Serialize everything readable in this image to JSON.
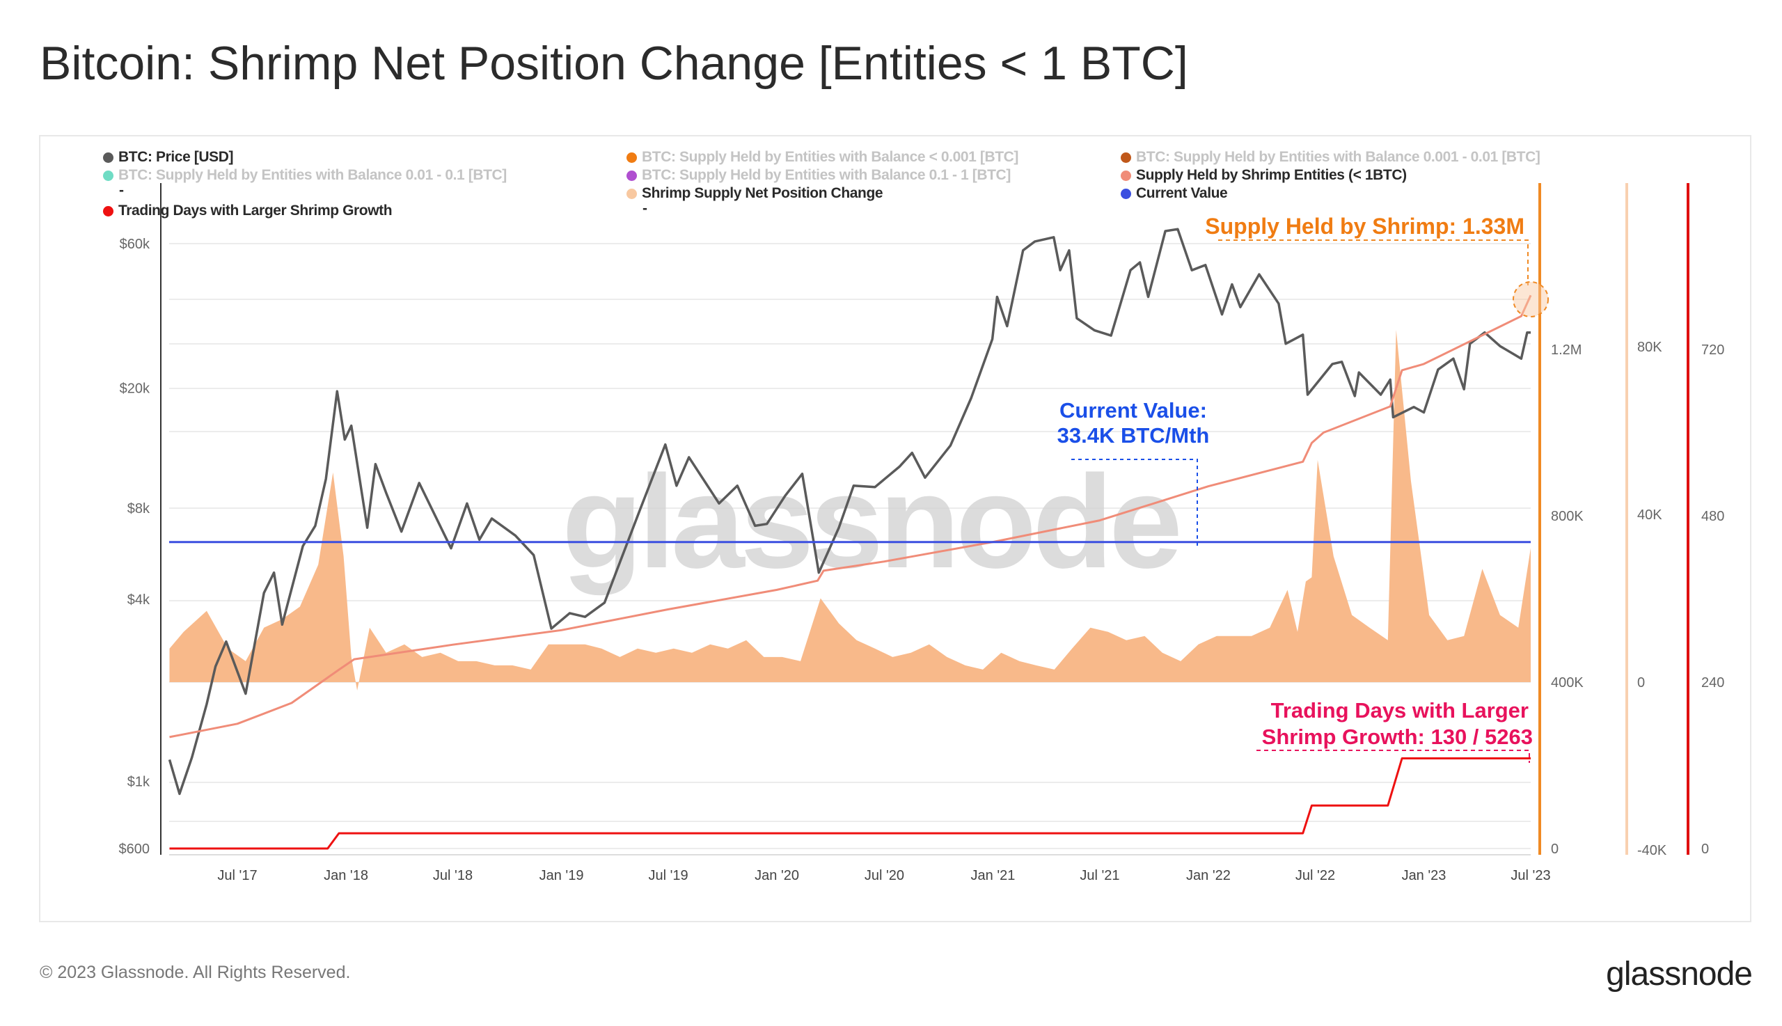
{
  "title": "Bitcoin: Shrimp Net Position Change [Entities < 1 BTC]",
  "legend": [
    {
      "label": "BTC: Price [USD]",
      "color": "#5a5a5a",
      "active": true
    },
    {
      "label": "BTC: Supply Held by Entities with Balance < 0.001 [BTC]",
      "color": "#f07c12",
      "active": false
    },
    {
      "label": "BTC: Supply Held by Entities with Balance 0.001 - 0.01 [BTC]",
      "color": "#c0581a",
      "active": false
    },
    {
      "label": "BTC: Supply Held by Entities with Balance 0.01 - 0.1 [BTC]",
      "color": "#6fdcc4",
      "active": false
    },
    {
      "label": "BTC: Supply Held by Entities with Balance 0.1 - 1 [BTC]",
      "color": "#b04fd0",
      "active": false
    },
    {
      "label": "Supply Held by Shrimp Entities (< 1BTC)",
      "color": "#f08c78",
      "active": true
    },
    {
      "label": "Shrimp Supply Net Position Change",
      "color": "#f8c8a0",
      "active": true
    },
    {
      "label": "Current Value",
      "color": "#3b4fe0",
      "active": true
    },
    {
      "label": "Trading Days with Larger Shrimp Growth",
      "color": "#ee1111",
      "active": true
    }
  ],
  "legend_dash": "-",
  "annotations": {
    "supply": "Supply Held by Shrimp: 1.33M",
    "current_1": "Current Value:",
    "current_2": "33.4K BTC/Mth",
    "days_1": "Trading Days with Larger",
    "days_2": "Shrimp Growth: 130 / 5263"
  },
  "watermark": "glassnode",
  "footer": {
    "copyright": "© 2023 Glassnode. All Rights Reserved.",
    "logo": "glassnode"
  },
  "chart_data": {
    "type": "line",
    "title": "Bitcoin: Shrimp Net Position Change [Entities < 1 BTC]",
    "x_ticks": [
      "Jul '17",
      "Jan '18",
      "Jul '18",
      "Jan '19",
      "Jul '19",
      "Jan '20",
      "Jul '20",
      "Jan '21",
      "Jul '21",
      "Jan '22",
      "Jul '22",
      "Jan '23",
      "Jul '23"
    ],
    "x_tick_dates": [
      "2017-07-01",
      "2018-01-01",
      "2018-07-01",
      "2019-01-01",
      "2019-07-01",
      "2020-01-01",
      "2020-07-01",
      "2021-01-01",
      "2021-07-01",
      "2022-01-01",
      "2022-07-01",
      "2023-01-01",
      "2023-07-01"
    ],
    "axes": {
      "price": {
        "scale": "log",
        "ticks": [
          "$600",
          "$1k",
          "$4k",
          "$8k",
          "$20k",
          "$60k"
        ],
        "tick_values": [
          600,
          1000,
          4000,
          8000,
          20000,
          60000
        ],
        "side": "left"
      },
      "supply": {
        "ticks": [
          "0",
          "400K",
          "800K",
          "1.2M"
        ],
        "tick_values": [
          0,
          400000,
          800000,
          1200000
        ],
        "side": "right",
        "color": "#f08a24"
      },
      "net_position": {
        "ticks": [
          "-40K",
          "0",
          "40K",
          "80K"
        ],
        "tick_values": [
          -40000,
          0,
          40000,
          80000
        ],
        "side": "right",
        "color": "#f8d0b0"
      },
      "trading_days": {
        "ticks": [
          "0",
          "240",
          "480",
          "720"
        ],
        "tick_values": [
          0,
          240,
          480,
          720
        ],
        "side": "right",
        "color": "#e01010"
      }
    },
    "grid": true,
    "legend_position": "top",
    "series": [
      {
        "name": "BTC: Price [USD]",
        "axis": "price",
        "type": "line",
        "color": "#5a5a5a",
        "points": [
          [
            "2017-03-08",
            1180
          ],
          [
            "2017-03-25",
            910
          ],
          [
            "2017-04-15",
            1200
          ],
          [
            "2017-05-10",
            1800
          ],
          [
            "2017-05-25",
            2400
          ],
          [
            "2017-06-12",
            2900
          ],
          [
            "2017-07-15",
            1950
          ],
          [
            "2017-08-15",
            4200
          ],
          [
            "2017-09-01",
            4900
          ],
          [
            "2017-09-15",
            3300
          ],
          [
            "2017-10-20",
            6000
          ],
          [
            "2017-11-10",
            7000
          ],
          [
            "2017-11-28",
            10000
          ],
          [
            "2017-12-17",
            19500
          ],
          [
            "2017-12-30",
            13500
          ],
          [
            "2018-01-10",
            15000
          ],
          [
            "2018-02-06",
            6900
          ],
          [
            "2018-02-20",
            11200
          ],
          [
            "2018-03-10",
            9000
          ],
          [
            "2018-04-05",
            6700
          ],
          [
            "2018-05-05",
            9700
          ],
          [
            "2018-06-28",
            5900
          ],
          [
            "2018-07-25",
            8300
          ],
          [
            "2018-08-15",
            6300
          ],
          [
            "2018-09-05",
            7400
          ],
          [
            "2018-10-15",
            6500
          ],
          [
            "2018-11-15",
            5600
          ],
          [
            "2018-12-15",
            3200
          ],
          [
            "2019-01-15",
            3600
          ],
          [
            "2019-02-10",
            3500
          ],
          [
            "2019-03-15",
            3900
          ],
          [
            "2019-04-05",
            5000
          ],
          [
            "2019-05-15",
            8000
          ],
          [
            "2019-06-26",
            13000
          ],
          [
            "2019-07-15",
            9500
          ],
          [
            "2019-08-05",
            11800
          ],
          [
            "2019-09-25",
            8300
          ],
          [
            "2019-10-26",
            9500
          ],
          [
            "2019-11-25",
            7000
          ],
          [
            "2019-12-15",
            7100
          ],
          [
            "2020-01-15",
            8800
          ],
          [
            "2020-02-13",
            10400
          ],
          [
            "2020-03-12",
            4900
          ],
          [
            "2020-04-15",
            6900
          ],
          [
            "2020-05-10",
            9500
          ],
          [
            "2020-06-15",
            9400
          ],
          [
            "2020-07-27",
            11000
          ],
          [
            "2020-08-17",
            12200
          ],
          [
            "2020-09-08",
            10100
          ],
          [
            "2020-10-21",
            12900
          ],
          [
            "2020-11-25",
            18500
          ],
          [
            "2020-12-31",
            29000
          ],
          [
            "2021-01-08",
            40000
          ],
          [
            "2021-01-25",
            32000
          ],
          [
            "2021-02-21",
            57000
          ],
          [
            "2021-03-13",
            61000
          ],
          [
            "2021-04-14",
            63000
          ],
          [
            "2021-04-25",
            49000
          ],
          [
            "2021-05-10",
            57000
          ],
          [
            "2021-05-23",
            34000
          ],
          [
            "2021-06-22",
            31000
          ],
          [
            "2021-07-20",
            29800
          ],
          [
            "2021-08-22",
            49000
          ],
          [
            "2021-09-07",
            52000
          ],
          [
            "2021-09-21",
            40000
          ],
          [
            "2021-10-20",
            66000
          ],
          [
            "2021-11-10",
            67000
          ],
          [
            "2021-12-04",
            49000
          ],
          [
            "2021-12-27",
            51000
          ],
          [
            "2022-01-24",
            35000
          ],
          [
            "2022-02-10",
            44000
          ],
          [
            "2022-02-24",
            37000
          ],
          [
            "2022-03-28",
            47500
          ],
          [
            "2022-04-30",
            38000
          ],
          [
            "2022-05-12",
            28000
          ],
          [
            "2022-06-10",
            30000
          ],
          [
            "2022-06-18",
            19000
          ],
          [
            "2022-07-30",
            24000
          ],
          [
            "2022-08-15",
            24400
          ],
          [
            "2022-09-06",
            18800
          ],
          [
            "2022-09-13",
            22500
          ],
          [
            "2022-10-20",
            19000
          ],
          [
            "2022-11-05",
            21300
          ],
          [
            "2022-11-10",
            16000
          ],
          [
            "2022-12-15",
            17300
          ],
          [
            "2023-01-01",
            16600
          ],
          [
            "2023-01-25",
            23000
          ],
          [
            "2023-02-20",
            25000
          ],
          [
            "2023-03-10",
            19800
          ],
          [
            "2023-03-20",
            28000
          ],
          [
            "2023-04-14",
            30500
          ],
          [
            "2023-05-10",
            27500
          ],
          [
            "2023-06-15",
            25000
          ],
          [
            "2023-06-25",
            30500
          ],
          [
            "2023-07-01",
            30500
          ]
        ]
      },
      {
        "name": "Supply Held by Shrimp Entities (< 1BTC)",
        "axis": "supply",
        "type": "line",
        "color": "#f08c78",
        "points": [
          [
            "2017-03-08",
            268000
          ],
          [
            "2017-07-01",
            300000
          ],
          [
            "2017-10-01",
            350000
          ],
          [
            "2017-12-20",
            430000
          ],
          [
            "2018-01-15",
            455000
          ],
          [
            "2018-07-01",
            490000
          ],
          [
            "2019-01-01",
            525000
          ],
          [
            "2019-07-01",
            575000
          ],
          [
            "2020-01-01",
            622000
          ],
          [
            "2020-03-10",
            644000
          ],
          [
            "2020-03-20",
            668000
          ],
          [
            "2020-07-01",
            690000
          ],
          [
            "2021-01-01",
            737000
          ],
          [
            "2021-07-01",
            789000
          ],
          [
            "2022-01-01",
            871000
          ],
          [
            "2022-06-10",
            930000
          ],
          [
            "2022-06-25",
            975000
          ],
          [
            "2022-07-15",
            1000000
          ],
          [
            "2022-11-05",
            1063000
          ],
          [
            "2022-11-25",
            1150000
          ],
          [
            "2023-01-01",
            1165000
          ],
          [
            "2023-06-15",
            1280000
          ],
          [
            "2023-07-01",
            1330000
          ]
        ]
      },
      {
        "name": "Shrimp Supply Net Position Change",
        "axis": "net_position",
        "type": "area",
        "color": "#f8b98a",
        "points": [
          [
            "2017-03-08",
            8000
          ],
          [
            "2017-04-01",
            12000
          ],
          [
            "2017-05-10",
            17000
          ],
          [
            "2017-06-15",
            8000
          ],
          [
            "2017-07-15",
            5000
          ],
          [
            "2017-08-15",
            13000
          ],
          [
            "2017-09-15",
            15000
          ],
          [
            "2017-10-15",
            18000
          ],
          [
            "2017-11-15",
            28000
          ],
          [
            "2017-12-10",
            50000
          ],
          [
            "2017-12-28",
            30000
          ],
          [
            "2018-01-10",
            6000
          ],
          [
            "2018-01-20",
            -2000
          ],
          [
            "2018-02-10",
            13000
          ],
          [
            "2018-03-10",
            7000
          ],
          [
            "2018-04-10",
            9000
          ],
          [
            "2018-05-10",
            6000
          ],
          [
            "2018-06-10",
            7000
          ],
          [
            "2018-07-10",
            5000
          ],
          [
            "2018-08-10",
            5000
          ],
          [
            "2018-09-10",
            4000
          ],
          [
            "2018-10-10",
            4000
          ],
          [
            "2018-11-10",
            3000
          ],
          [
            "2018-12-10",
            9000
          ],
          [
            "2019-01-10",
            9000
          ],
          [
            "2019-02-10",
            9000
          ],
          [
            "2019-03-10",
            8000
          ],
          [
            "2019-04-10",
            6000
          ],
          [
            "2019-05-10",
            8000
          ],
          [
            "2019-06-10",
            7000
          ],
          [
            "2019-07-10",
            8000
          ],
          [
            "2019-08-10",
            7000
          ],
          [
            "2019-09-10",
            9000
          ],
          [
            "2019-10-10",
            8000
          ],
          [
            "2019-11-10",
            10000
          ],
          [
            "2019-12-10",
            6000
          ],
          [
            "2020-01-10",
            6000
          ],
          [
            "2020-02-10",
            5000
          ],
          [
            "2020-03-15",
            20000
          ],
          [
            "2020-04-15",
            14000
          ],
          [
            "2020-05-15",
            10000
          ],
          [
            "2020-06-15",
            8000
          ],
          [
            "2020-07-15",
            6000
          ],
          [
            "2020-08-15",
            7000
          ],
          [
            "2020-09-15",
            9000
          ],
          [
            "2020-10-15",
            6000
          ],
          [
            "2020-11-15",
            4000
          ],
          [
            "2020-12-15",
            3000
          ],
          [
            "2021-01-15",
            7000
          ],
          [
            "2021-02-15",
            5000
          ],
          [
            "2021-03-15",
            4000
          ],
          [
            "2021-04-15",
            3000
          ],
          [
            "2021-05-15",
            8000
          ],
          [
            "2021-06-15",
            13000
          ],
          [
            "2021-07-15",
            12000
          ],
          [
            "2021-08-15",
            10000
          ],
          [
            "2021-09-15",
            11000
          ],
          [
            "2021-10-15",
            7000
          ],
          [
            "2021-11-15",
            5000
          ],
          [
            "2021-12-15",
            9000
          ],
          [
            "2022-01-15",
            11000
          ],
          [
            "2022-02-15",
            11000
          ],
          [
            "2022-03-15",
            11000
          ],
          [
            "2022-04-15",
            13000
          ],
          [
            "2022-05-15",
            22000
          ],
          [
            "2022-06-01",
            12000
          ],
          [
            "2022-06-15",
            24000
          ],
          [
            "2022-06-25",
            25000
          ],
          [
            "2022-07-05",
            53000
          ],
          [
            "2022-08-01",
            30000
          ],
          [
            "2022-09-01",
            16000
          ],
          [
            "2022-10-01",
            13000
          ],
          [
            "2022-11-01",
            10000
          ],
          [
            "2022-11-15",
            84000
          ],
          [
            "2022-12-10",
            48000
          ],
          [
            "2023-01-10",
            16000
          ],
          [
            "2023-02-10",
            10000
          ],
          [
            "2023-03-10",
            11000
          ],
          [
            "2023-04-10",
            27000
          ],
          [
            "2023-05-10",
            16000
          ],
          [
            "2023-06-10",
            13000
          ],
          [
            "2023-07-01",
            32000
          ]
        ]
      },
      {
        "name": "Current Value",
        "axis": "net_position",
        "type": "hline",
        "color": "#3b4fe0",
        "value": 33400
      },
      {
        "name": "Trading Days with Larger Shrimp Growth",
        "axis": "trading_days",
        "type": "line",
        "color": "#ee1111",
        "points": [
          [
            "2017-03-08",
            0
          ],
          [
            "2017-12-01",
            0
          ],
          [
            "2017-12-20",
            22
          ],
          [
            "2022-06-10",
            22
          ],
          [
            "2022-06-25",
            62
          ],
          [
            "2022-11-01",
            62
          ],
          [
            "2022-11-25",
            130
          ],
          [
            "2023-07-01",
            130
          ]
        ]
      }
    ]
  }
}
